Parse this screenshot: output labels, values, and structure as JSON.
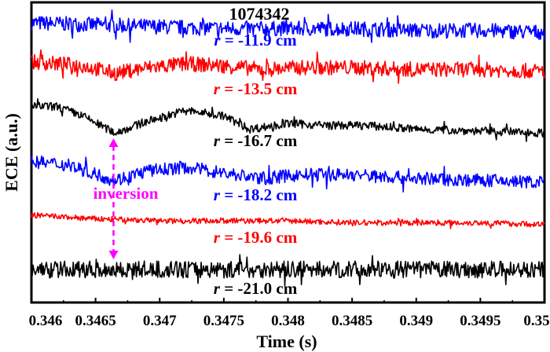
{
  "chart_data": {
    "type": "line",
    "title": "1074342",
    "xlabel": "Time (s)",
    "ylabel": "ECE (a.u.)",
    "xlim": [
      0.346,
      0.35
    ],
    "xticks": [
      0.346,
      0.3465,
      0.347,
      0.3475,
      0.348,
      0.3485,
      0.349,
      0.3495,
      0.35
    ],
    "xtick_labels": [
      "0.346",
      "0.3465",
      "0.347",
      "0.3475",
      "0.348",
      "0.3485",
      "0.349",
      "0.3495",
      "0.35"
    ],
    "grid": false,
    "legend": "none",
    "series": [
      {
        "name": "r = -11.9 cm",
        "color": "#0000ff",
        "x": [
          0.346,
          0.3465,
          0.347,
          0.3475,
          0.348,
          0.3485,
          0.349,
          0.3495,
          0.35
        ],
        "y": [
          0.2,
          0.1,
          0.0,
          -0.1,
          -0.1,
          -0.1,
          -0.2,
          -0.2,
          -0.3
        ],
        "noise": 0.4
      },
      {
        "name": "r = -13.5 cm",
        "color": "#ff0000",
        "x": [
          0.346,
          0.3464,
          0.34665,
          0.3469,
          0.3472,
          0.3475,
          0.3478,
          0.3481,
          0.3485,
          0.349,
          0.3495,
          0.35
        ],
        "y": [
          0.3,
          0.1,
          -0.3,
          0.0,
          0.2,
          0.1,
          -0.1,
          0.0,
          0.0,
          -0.1,
          -0.1,
          -0.2
        ],
        "noise": 0.4
      },
      {
        "name": "r = -16.7 cm",
        "color": "#000000",
        "x": [
          0.346,
          0.3462,
          0.3464,
          0.34665,
          0.3469,
          0.3472,
          0.3475,
          0.3477,
          0.348,
          0.3483,
          0.3486,
          0.349,
          0.3495,
          0.35
        ],
        "y": [
          0.6,
          0.6,
          0.1,
          -0.8,
          -0.2,
          0.4,
          0.1,
          -0.6,
          -0.3,
          -0.4,
          -0.4,
          -0.6,
          -0.7,
          -0.8
        ],
        "noise": 0.22
      },
      {
        "name": "r = -18.2 cm",
        "color": "#0000ff",
        "x": [
          0.346,
          0.3463,
          0.34665,
          0.3469,
          0.3472,
          0.3475,
          0.3478,
          0.3481,
          0.3485,
          0.349,
          0.3495,
          0.35
        ],
        "y": [
          0.6,
          0.4,
          -0.4,
          0.1,
          0.3,
          0.0,
          -0.3,
          -0.1,
          -0.1,
          -0.3,
          -0.4,
          -0.5
        ],
        "noise": 0.35
      },
      {
        "name": "r = -19.6 cm",
        "color": "#ff0000",
        "x": [
          0.346,
          0.3465,
          0.347,
          0.3475,
          0.348,
          0.3485,
          0.349,
          0.3495,
          0.35
        ],
        "y": [
          0.3,
          0.1,
          0.0,
          0.0,
          0.0,
          -0.1,
          -0.1,
          -0.1,
          -0.2
        ],
        "noise": 0.15
      },
      {
        "name": "r = -21.0 cm",
        "color": "#000000",
        "x": [
          0.346,
          0.3465,
          0.347,
          0.3475,
          0.348,
          0.3485,
          0.349,
          0.3495,
          0.35
        ],
        "y": [
          0.0,
          0.0,
          0.0,
          0.0,
          0.0,
          0.0,
          0.0,
          0.0,
          0.0
        ],
        "noise": 0.45
      }
    ],
    "labels": [
      {
        "prefix": "r",
        "text": " = -11.9 cm",
        "color": "#0000ff"
      },
      {
        "prefix": "r",
        "text": " = -13.5 cm",
        "color": "#ff0000"
      },
      {
        "prefix": "r",
        "text": " = -16.7 cm",
        "color": "#000000"
      },
      {
        "prefix": "r",
        "text": " = -18.2 cm",
        "color": "#0000ff"
      },
      {
        "prefix": "r",
        "text": " = -19.6 cm",
        "color": "#ff0000"
      },
      {
        "prefix": "r",
        "text": " = -21.0 cm",
        "color": "#000000"
      }
    ],
    "annotations": [
      {
        "text": "inversion",
        "color": "#ff00ff",
        "x": 0.34664,
        "style": "dashed double-headed arrow"
      }
    ]
  }
}
